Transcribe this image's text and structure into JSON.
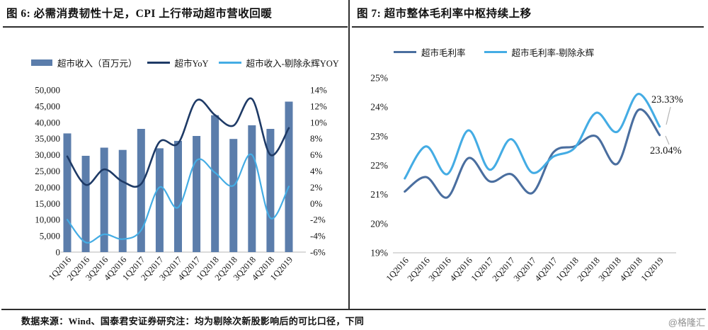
{
  "page": {
    "footer_source": "数据来源：Wind、国泰君安证券研究注：均为剔除次新股影响后的可比口径，下同",
    "watermark": "@格隆汇"
  },
  "colors": {
    "bar": "#5b7dab",
    "yoy_line": "#1e3a66",
    "light_line": "#44ace4",
    "margin_line": "#4a6e9f",
    "margin_ex_line": "#44ace4",
    "rule": "#2e2e2e",
    "baseline": "#cfcfcf",
    "annotation_leader": "#b3b3b3",
    "watermark_gray": "#8f8f8f"
  },
  "chart_data": [
    {
      "type": "bar",
      "subtype": "bar-line-combo",
      "title": "图 6:  必需消费韧性十足，CPI 上行带动超市营收回暖",
      "categories": [
        "1Q2016",
        "2Q2016",
        "3Q2016",
        "4Q2016",
        "1Q2017",
        "2Q2017",
        "3Q2017",
        "4Q2017",
        "1Q2018",
        "2Q2018",
        "3Q2018",
        "4Q2018",
        "1Q2019"
      ],
      "bar_series": {
        "name": "超市收入（百万元）",
        "values": [
          36600,
          29700,
          32200,
          31500,
          38000,
          32000,
          34300,
          35800,
          42200,
          34900,
          39100,
          38000,
          46400
        ]
      },
      "line_series": [
        {
          "name": "超市YoY",
          "axis": "right",
          "values_pct": [
            5.8,
            2.3,
            4.2,
            2.7,
            2.4,
            7.6,
            7.4,
            12.7,
            10.9,
            9.6,
            12.9,
            6.0,
            9.3
          ]
        },
        {
          "name": "超市收入-剔除永辉YOY",
          "axis": "right",
          "values_pct": [
            -2.0,
            -4.8,
            -3.8,
            -4.4,
            -3.3,
            2.0,
            -0.5,
            5.3,
            3.8,
            2.2,
            6.0,
            -1.8,
            2.1
          ]
        }
      ],
      "y_left": {
        "min": 0,
        "max": 50000,
        "step": 5000,
        "tick_labels": [
          "0",
          "5,000",
          "10,000",
          "15,000",
          "20,000",
          "25,000",
          "30,000",
          "35,000",
          "40,000",
          "45,000",
          "50,000"
        ]
      },
      "y_right": {
        "min": -6,
        "max": 14,
        "step": 2,
        "tick_labels": [
          "-6%",
          "-4%",
          "-2%",
          "0%",
          "2%",
          "4%",
          "6%",
          "8%",
          "10%",
          "12%",
          "14%"
        ]
      },
      "legend_position": "top",
      "grid": false
    },
    {
      "type": "line",
      "title": "图 7:  超市整体毛利率中枢持续上移",
      "categories": [
        "1Q2016",
        "2Q2016",
        "3Q2016",
        "4Q2016",
        "1Q2017",
        "2Q2017",
        "3Q2017",
        "4Q2017",
        "1Q2018",
        "2Q2018",
        "3Q2018",
        "4Q2018",
        "1Q2019"
      ],
      "series": [
        {
          "name": "超市毛利率",
          "values_pct": [
            21.1,
            21.6,
            20.9,
            22.25,
            21.45,
            21.7,
            21.05,
            22.45,
            22.65,
            23.0,
            22.05,
            23.9,
            23.04
          ]
        },
        {
          "name": "超市毛利率-剔除永辉",
          "values_pct": [
            21.55,
            22.65,
            21.7,
            23.2,
            21.85,
            22.9,
            21.75,
            22.3,
            22.6,
            23.8,
            23.15,
            24.45,
            23.33
          ]
        }
      ],
      "y": {
        "min": 19,
        "max": 25,
        "step": 1,
        "tick_labels": [
          "19%",
          "20%",
          "21%",
          "22%",
          "23%",
          "24%",
          "25%"
        ]
      },
      "annotations": [
        {
          "text": "23.33%",
          "series": "超市毛利率-剔除永辉"
        },
        {
          "text": "23.04%",
          "series": "超市毛利率"
        }
      ],
      "legend_position": "top",
      "grid": false
    }
  ]
}
